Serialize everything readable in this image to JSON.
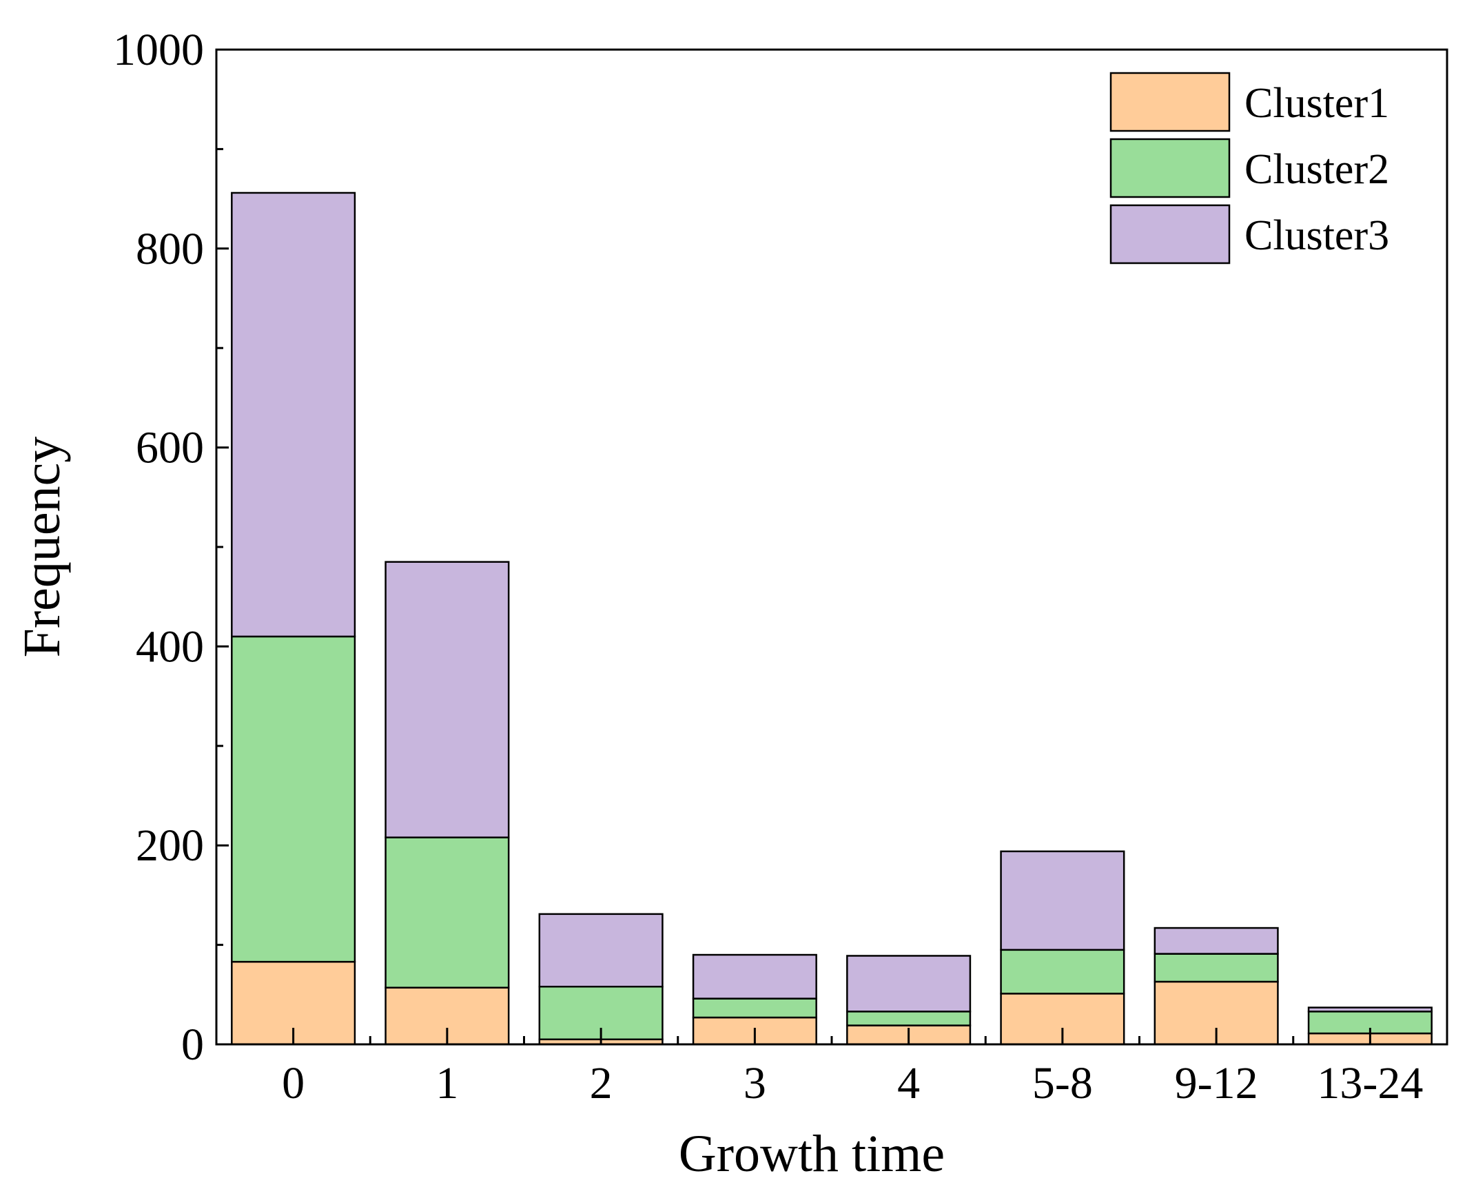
{
  "chart_data": {
    "type": "bar",
    "stacked": true,
    "title": "",
    "xlabel": "Growth time",
    "ylabel": "Frequency",
    "ylim": [
      0,
      1000
    ],
    "yticks": [
      0,
      200,
      400,
      600,
      800,
      1000
    ],
    "categories": [
      "0",
      "1",
      "2",
      "3",
      "4",
      "5-8",
      "9-12",
      "13-24"
    ],
    "series": [
      {
        "name": "Cluster1",
        "color": "#FFCC99",
        "values": [
          83,
          57,
          5,
          27,
          19,
          51,
          63,
          11
        ]
      },
      {
        "name": "Cluster2",
        "color": "#99DD99",
        "values": [
          327,
          151,
          53,
          19,
          14,
          44,
          28,
          22
        ]
      },
      {
        "name": "Cluster3",
        "color": "#C8B6DD",
        "values": [
          446,
          277,
          73,
          44,
          56,
          99,
          26,
          4
        ]
      }
    ],
    "legend_position": "top-right",
    "grid": false
  }
}
